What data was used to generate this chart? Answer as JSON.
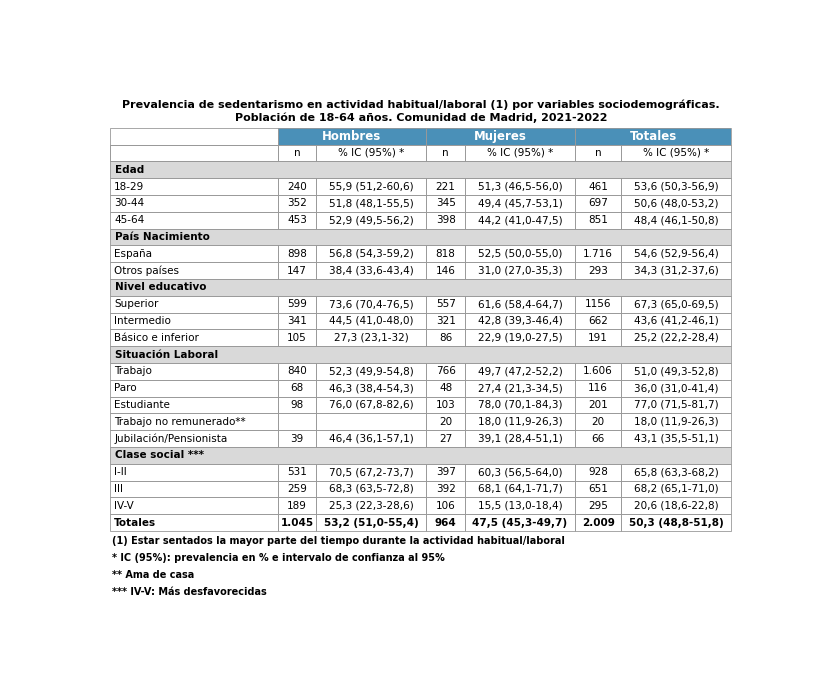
{
  "title_line1": "Prevalencia de sedentarismo en actividad habitual/laboral (1) por variables sociodemográficas.",
  "title_line2": "Población de 18-64 años. Comunidad de Madrid, 2021-2022",
  "header_bg_color": "#4a90b8",
  "header_text_color": "#ffffff",
  "section_bg_color": "#d9d9d9",
  "border_color": "#999999",
  "col_props": [
    0.225,
    0.052,
    0.148,
    0.052,
    0.148,
    0.062,
    0.148
  ],
  "sections": [
    {
      "name": "Edad",
      "rows": [
        [
          "18-29",
          "240",
          "55,9 (51,2-60,6)",
          "221",
          "51,3 (46,5-56,0)",
          "461",
          "53,6 (50,3-56,9)"
        ],
        [
          "30-44",
          "352",
          "51,8 (48,1-55,5)",
          "345",
          "49,4 (45,7-53,1)",
          "697",
          "50,6 (48,0-53,2)"
        ],
        [
          "45-64",
          "453",
          "52,9 (49,5-56,2)",
          "398",
          "44,2 (41,0-47,5)",
          "851",
          "48,4 (46,1-50,8)"
        ]
      ]
    },
    {
      "name": "País Nacimiento",
      "rows": [
        [
          "España",
          "898",
          "56,8 (54,3-59,2)",
          "818",
          "52,5 (50,0-55,0)",
          "1.716",
          "54,6 (52,9-56,4)"
        ],
        [
          "Otros países",
          "147",
          "38,4 (33,6-43,4)",
          "146",
          "31,0 (27,0-35,3)",
          "293",
          "34,3 (31,2-37,6)"
        ]
      ]
    },
    {
      "name": "Nivel educativo",
      "rows": [
        [
          "Superior",
          "599",
          "73,6 (70,4-76,5)",
          "557",
          "61,6 (58,4-64,7)",
          "1156",
          "67,3 (65,0-69,5)"
        ],
        [
          "Intermedio",
          "341",
          "44,5 (41,0-48,0)",
          "321",
          "42,8 (39,3-46,4)",
          "662",
          "43,6 (41,2-46,1)"
        ],
        [
          "Básico e inferior",
          "105",
          "27,3 (23,1-32)",
          "86",
          "22,9 (19,0-27,5)",
          "191",
          "25,2 (22,2-28,4)"
        ]
      ]
    },
    {
      "name": "Situación Laboral",
      "rows": [
        [
          "Trabajo",
          "840",
          "52,3 (49,9-54,8)",
          "766",
          "49,7 (47,2-52,2)",
          "1.606",
          "51,0 (49,3-52,8)"
        ],
        [
          "Paro",
          "68",
          "46,3 (38,4-54,3)",
          "48",
          "27,4 (21,3-34,5)",
          "116",
          "36,0 (31,0-41,4)"
        ],
        [
          "Estudiante",
          "98",
          "76,0 (67,8-82,6)",
          "103",
          "78,0 (70,1-84,3)",
          "201",
          "77,0 (71,5-81,7)"
        ],
        [
          "Trabajo no remunerado**",
          "",
          "",
          "20",
          "18,0 (11,9-26,3)",
          "20",
          "18,0 (11,9-26,3)"
        ],
        [
          "Jubilación/Pensionista",
          "39",
          "46,4 (36,1-57,1)",
          "27",
          "39,1 (28,4-51,1)",
          "66",
          "43,1 (35,5-51,1)"
        ]
      ]
    },
    {
      "name": "Clase social ***",
      "rows": [
        [
          "I-II",
          "531",
          "70,5 (67,2-73,7)",
          "397",
          "60,3 (56,5-64,0)",
          "928",
          "65,8 (63,3-68,2)"
        ],
        [
          "III",
          "259",
          "68,3 (63,5-72,8)",
          "392",
          "68,1 (64,1-71,7)",
          "651",
          "68,2 (65,1-71,0)"
        ],
        [
          "IV-V",
          "189",
          "25,3 (22,3-28,6)",
          "106",
          "15,5 (13,0-18,4)",
          "295",
          "20,6 (18,6-22,8)"
        ]
      ]
    }
  ],
  "totals_row": [
    "Totales",
    "1.045",
    "53,2 (51,0-55,4)",
    "964",
    "47,5 (45,3-49,7)",
    "2.009",
    "50,3 (48,8-51,8)"
  ],
  "footnotes": [
    "(1) Estar sentados la mayor parte del tiempo durante la actividad habitual/laboral",
    "* IC (95%): prevalencia en % e intervalo de confianza al 95%",
    "** Ama de casa",
    "*** IV-V: Más desfavorecidas"
  ]
}
